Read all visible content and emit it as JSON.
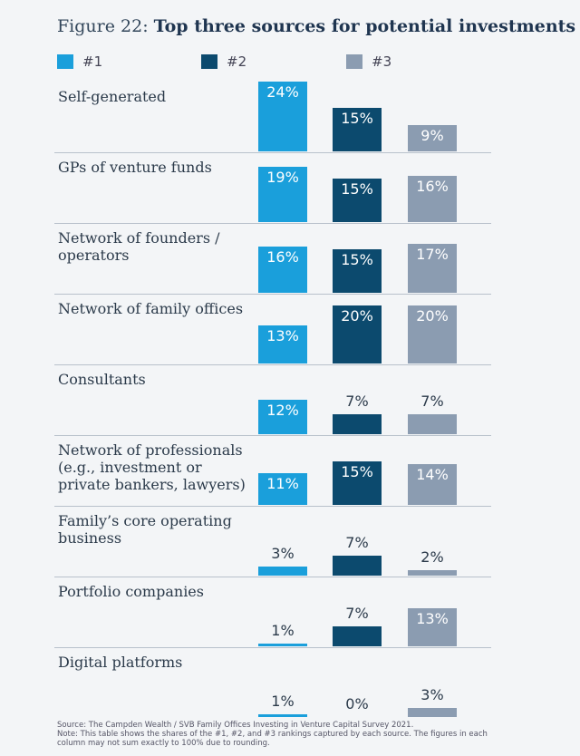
{
  "chart_data": {
    "type": "bar",
    "figure_label": "Figure 22:",
    "title": "Top three sources for potential investments",
    "categories": [
      "Self-generated",
      "GPs of venture funds",
      "Network of founders / operators",
      "Network of family offices",
      "Consultants",
      "Network of professionals (e.g., investment or private bankers, lawyers)",
      "Family’s core operating business",
      "Portfolio companies",
      "Digital platforms"
    ],
    "series": [
      {
        "name": "#1",
        "color": "#1a9fdb",
        "values": [
          24,
          19,
          16,
          13,
          12,
          11,
          3,
          1,
          1
        ],
        "value_labels": [
          "24%",
          "19%",
          "16%",
          "13%",
          "12%",
          "11%",
          "3%",
          "1%",
          "1%"
        ]
      },
      {
        "name": "#2",
        "color": "#0c4a6e",
        "values": [
          15,
          15,
          15,
          20,
          7,
          15,
          7,
          7,
          0
        ],
        "value_labels": [
          "15%",
          "15%",
          "15%",
          "20%",
          "7%",
          "15%",
          "7%",
          "7%",
          "0%"
        ]
      },
      {
        "name": "#3",
        "color": "#8b9cb1",
        "values": [
          9,
          16,
          17,
          20,
          7,
          14,
          2,
          13,
          3
        ],
        "value_labels": [
          "9%",
          "16%",
          "17%",
          "20%",
          "7%",
          "14%",
          "2%",
          "13%",
          "3%"
        ]
      }
    ],
    "source": "Source: The Campden Wealth / SVB Family Offices Investing in Venture Capital Survey 2021.",
    "note": "Note: This table shows the shares of the #1, #2, and #3 rankings captured by each source. The figures in each column may not sum exactly to 100% due to rounding."
  }
}
